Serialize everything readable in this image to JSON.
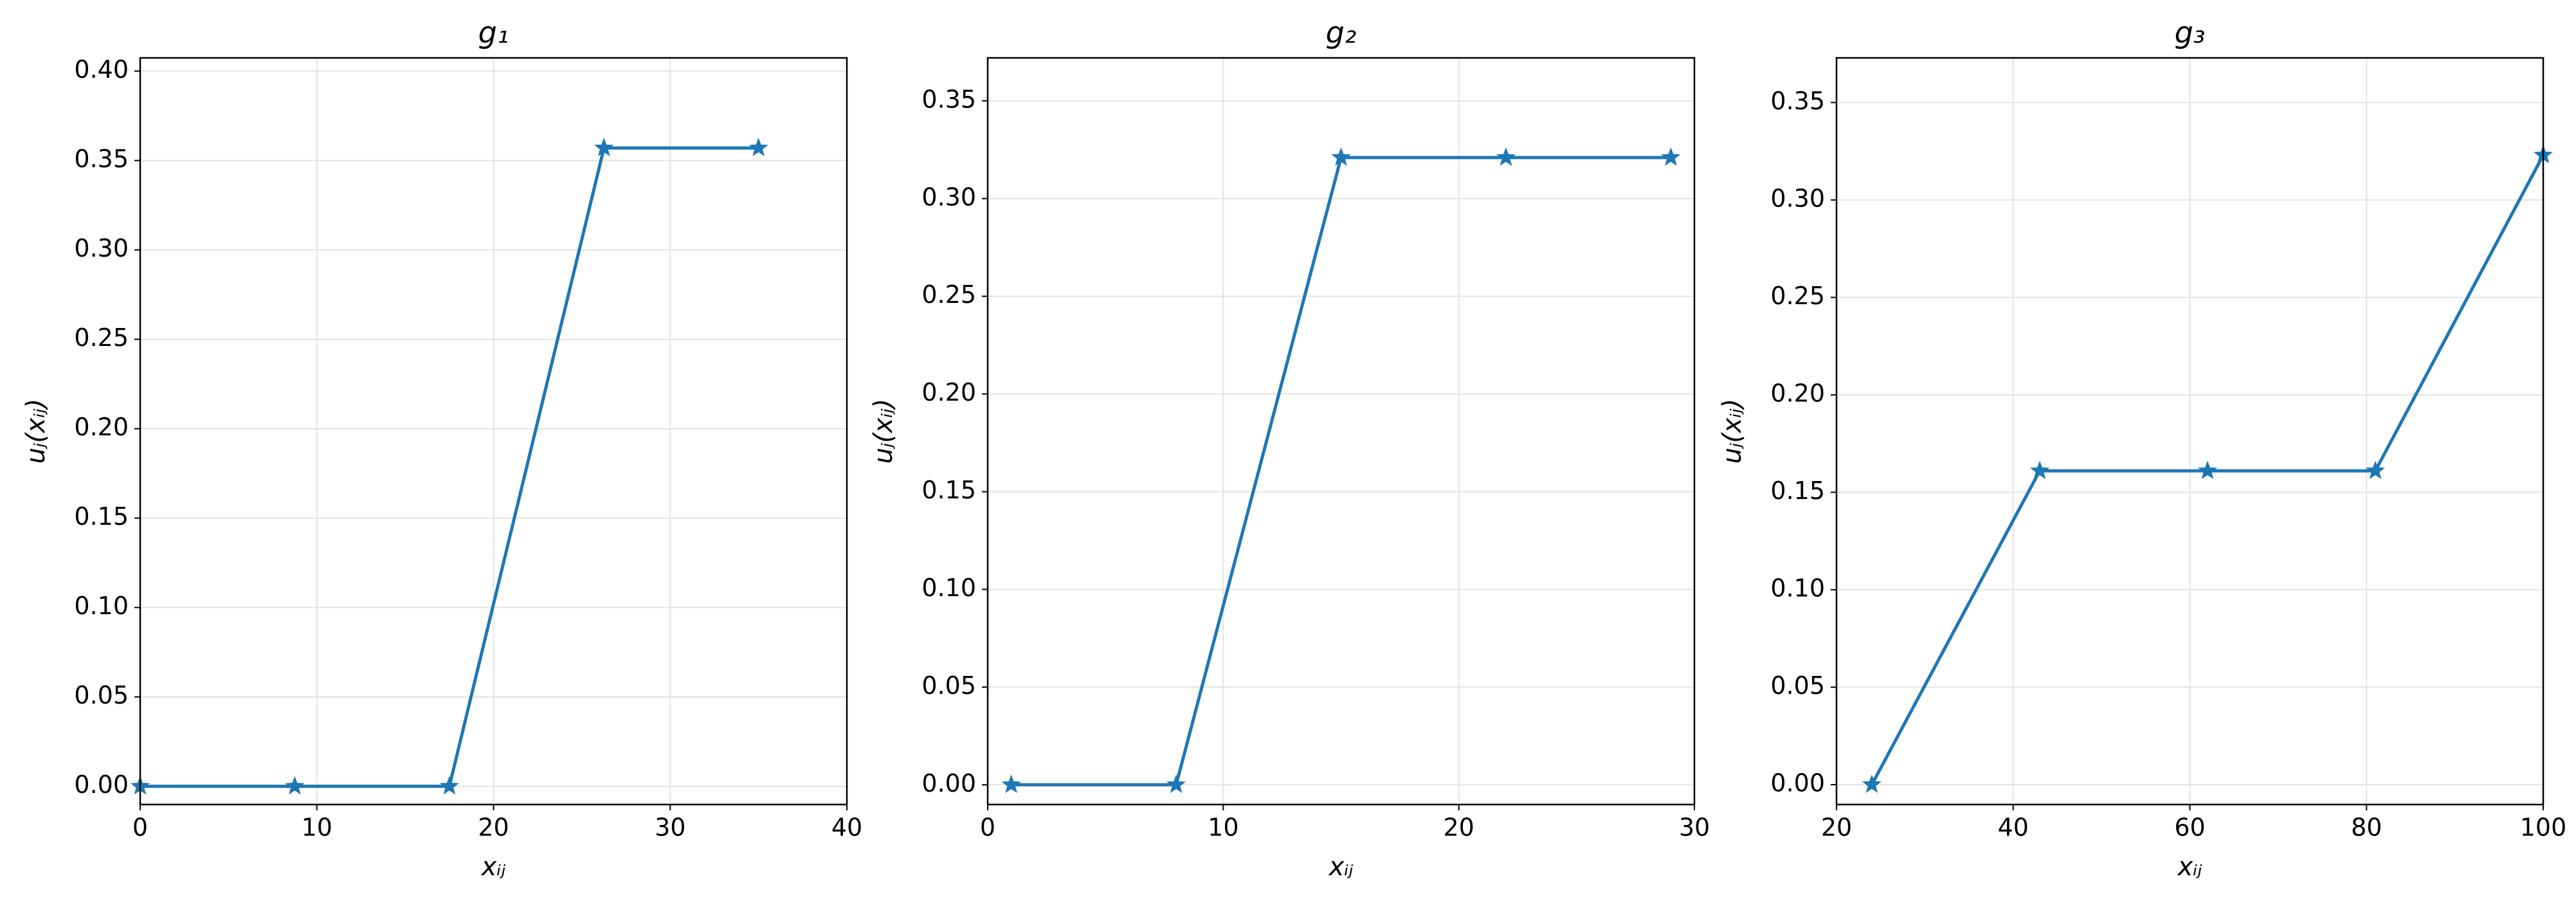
{
  "chart_data": [
    {
      "type": "line",
      "title": "g₁",
      "xlabel": "xᵢⱼ",
      "ylabel": "uⱼ(xᵢⱼ)",
      "grid": true,
      "marker": "star",
      "x": [
        0,
        8.75,
        17.5,
        26.25,
        35
      ],
      "series": [
        {
          "color": "#1f77b4",
          "values": [
            0,
            0,
            0,
            0.357,
            0.357
          ]
        }
      ],
      "xlim": [
        0,
        40
      ],
      "xticks": [
        0,
        10,
        20,
        30,
        40
      ],
      "ylim": [
        -0.0102,
        0.4074
      ],
      "yticks": [
        {
          "value": 0,
          "label": "0.00"
        },
        {
          "value": 0.05,
          "label": "0.05"
        },
        {
          "value": 0.1,
          "label": "0.10"
        },
        {
          "value": 0.15,
          "label": "0.15"
        },
        {
          "value": 0.2,
          "label": "0.20"
        },
        {
          "value": 0.25,
          "label": "0.25"
        },
        {
          "value": 0.3,
          "label": "0.30"
        },
        {
          "value": 0.35,
          "label": "0.35"
        },
        {
          "value": 0.4,
          "label": "0.40"
        }
      ]
    },
    {
      "type": "line",
      "title": "g₂",
      "xlabel": "xᵢⱼ",
      "ylabel": "uⱼ(xᵢⱼ)",
      "grid": true,
      "marker": "star",
      "x": [
        1,
        8,
        15,
        22,
        29
      ],
      "series": [
        {
          "color": "#1f77b4",
          "values": [
            0,
            0,
            0.321,
            0.321,
            0.321
          ]
        }
      ],
      "xlim": [
        0,
        30
      ],
      "xticks": [
        0,
        10,
        20,
        30
      ],
      "ylim": [
        -0.0101,
        0.372
      ],
      "yticks": [
        {
          "value": 0,
          "label": "0.00"
        },
        {
          "value": 0.05,
          "label": "0.05"
        },
        {
          "value": 0.1,
          "label": "0.10"
        },
        {
          "value": 0.15,
          "label": "0.15"
        },
        {
          "value": 0.2,
          "label": "0.20"
        },
        {
          "value": 0.25,
          "label": "0.25"
        },
        {
          "value": 0.3,
          "label": "0.30"
        },
        {
          "value": 0.35,
          "label": "0.35"
        }
      ]
    },
    {
      "type": "line",
      "title": "g₃",
      "xlabel": "xᵢⱼ",
      "ylabel": "uⱼ(xᵢⱼ)",
      "grid": true,
      "marker": "star",
      "x": [
        24,
        43,
        62,
        81,
        100
      ],
      "series": [
        {
          "color": "#1f77b4",
          "values": [
            0,
            0.161,
            0.161,
            0.161,
            0.323
          ]
        }
      ],
      "xlim": [
        20,
        100
      ],
      "xticks": [
        20,
        40,
        60,
        80,
        100
      ],
      "ylim": [
        -0.0102,
        0.3729
      ],
      "yticks": [
        {
          "value": 0,
          "label": "0.00"
        },
        {
          "value": 0.05,
          "label": "0.05"
        },
        {
          "value": 0.1,
          "label": "0.10"
        },
        {
          "value": 0.15,
          "label": "0.15"
        },
        {
          "value": 0.2,
          "label": "0.20"
        },
        {
          "value": 0.25,
          "label": "0.25"
        },
        {
          "value": 0.3,
          "label": "0.30"
        },
        {
          "value": 0.35,
          "label": "0.35"
        }
      ]
    }
  ]
}
